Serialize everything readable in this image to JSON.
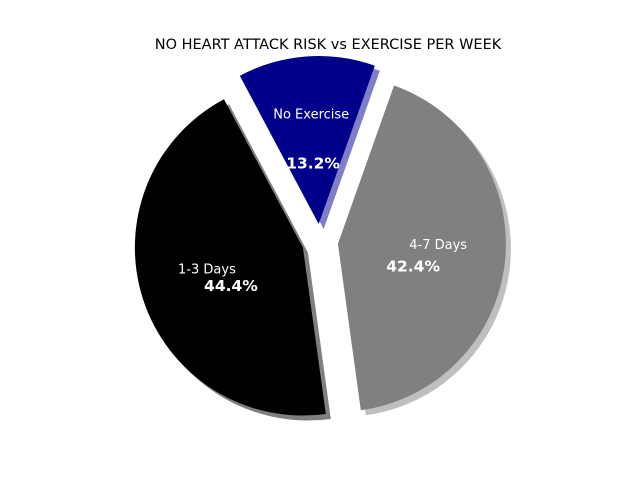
{
  "chart_data": {
    "type": "pie",
    "title": "NO HEART ATTACK RISK vs EXERCISE PER WEEK",
    "slices": [
      {
        "label": "1-3 Days",
        "value": 44.4,
        "pct_label": "44.4%",
        "color": "#000000"
      },
      {
        "label": "4-7 Days",
        "value": 42.4,
        "pct_label": "42.4%",
        "color": "#808080"
      },
      {
        "label": "No Exercise",
        "value": 13.2,
        "pct_label": "13.2%",
        "color": "#00008b"
      }
    ],
    "shadow": true,
    "exploded": true,
    "legend": "none"
  }
}
